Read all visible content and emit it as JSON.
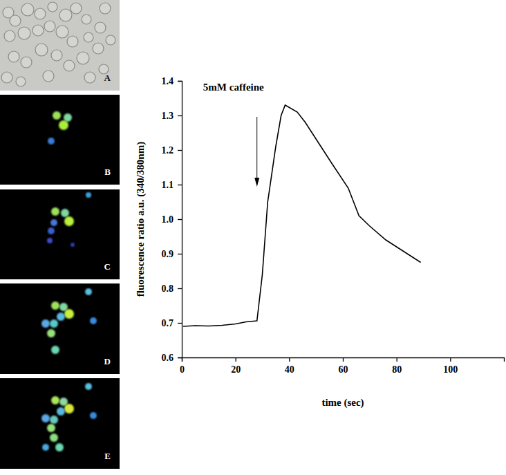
{
  "chart_data": {
    "type": "line",
    "x_label": "time (sec)",
    "y_label": "fluorescence ratio a.u. (340/380nm)",
    "x": [
      0.5,
      5,
      10,
      15,
      20,
      24,
      28,
      30,
      32,
      35,
      37,
      38.5,
      43,
      46,
      51,
      56,
      62,
      66,
      70,
      76,
      82,
      89
    ],
    "values": [
      0.69,
      0.692,
      0.691,
      0.693,
      0.697,
      0.703,
      0.706,
      0.84,
      1.05,
      1.21,
      1.3,
      1.33,
      1.31,
      1.28,
      1.22,
      1.16,
      1.09,
      1.01,
      0.98,
      0.94,
      0.91,
      0.875
    ],
    "color": "#000000",
    "xlim": [
      0,
      120
    ],
    "xticks": [
      0,
      20,
      40,
      60,
      80,
      100
    ],
    "ylim": [
      0.6,
      1.4
    ],
    "yticks": [
      0.6,
      0.7,
      0.8,
      0.9,
      {
        "value": 1,
        "label": "1.0"
      },
      1.1,
      1.2,
      1.3,
      1.4
    ],
    "grid": false,
    "annotations": [
      {
        "text": "5mM caffeine",
        "x": 28
      }
    ]
  },
  "panels": [
    "A",
    "B",
    "C",
    "D",
    "E"
  ]
}
